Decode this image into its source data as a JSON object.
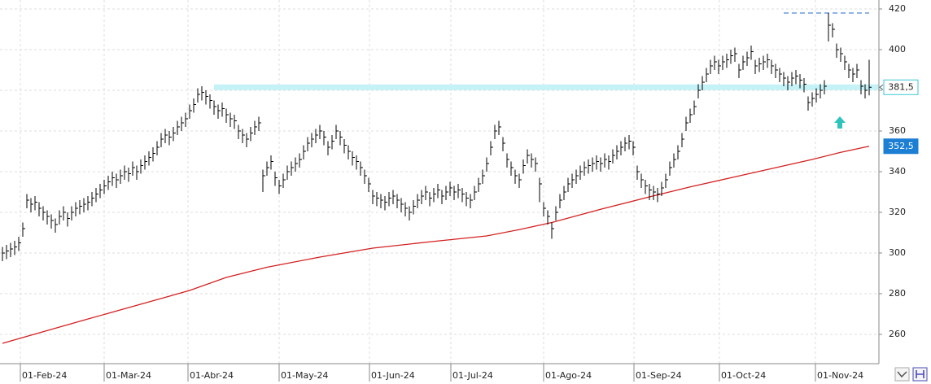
{
  "chart_data": {
    "type": "ohlc",
    "bars": {
      "color": "#000000",
      "high": [
        303,
        304,
        305,
        306,
        308,
        315,
        329,
        327,
        328,
        325,
        323,
        321,
        319,
        317,
        321,
        323,
        320,
        323,
        325,
        326,
        327,
        328,
        330,
        332,
        334,
        336,
        338,
        340,
        339,
        341,
        343,
        342,
        345,
        343,
        346,
        348,
        350,
        352,
        355,
        359,
        361,
        360,
        362,
        365,
        367,
        369,
        373,
        376,
        381,
        382,
        380,
        378,
        375,
        373,
        374,
        371,
        369,
        368,
        363,
        361,
        359,
        362,
        365,
        367,
        341,
        345,
        348,
        340,
        336,
        339,
        343,
        345,
        347,
        349,
        353,
        357,
        359,
        361,
        363,
        360,
        355,
        358,
        363,
        360,
        356,
        353,
        350,
        348,
        345,
        341,
        337,
        331,
        330,
        329,
        328,
        330,
        331,
        329,
        327,
        325,
        323,
        326,
        329,
        331,
        333,
        330,
        332,
        334,
        331,
        333,
        335,
        333,
        334,
        332,
        330,
        329,
        333,
        337,
        341,
        347,
        355,
        363,
        365,
        357,
        349,
        345,
        341,
        339,
        346,
        351,
        349,
        347,
        337,
        325,
        321,
        315,
        323,
        329,
        333,
        337,
        339,
        341,
        343,
        345,
        346,
        347,
        348,
        347,
        349,
        348,
        351,
        353,
        355,
        357,
        358,
        355,
        343,
        339,
        336,
        334,
        333,
        332,
        335,
        339,
        345,
        349,
        353,
        359,
        367,
        371,
        375,
        383,
        387,
        391,
        395,
        397,
        395,
        397,
        398,
        400,
        401,
        393,
        397,
        399,
        402,
        395,
        396,
        397,
        398,
        395,
        393,
        391,
        389,
        387,
        389,
        390,
        388,
        386,
        377,
        379,
        381,
        383,
        385,
        418,
        413,
        403,
        401,
        397,
        393,
        391,
        393,
        385,
        383,
        395
      ],
      "low": [
        296,
        297,
        298,
        299,
        301,
        308,
        322,
        320,
        321,
        318,
        316,
        314,
        312,
        310,
        314,
        316,
        313,
        316,
        318,
        319,
        320,
        321,
        323,
        325,
        327,
        329,
        331,
        333,
        332,
        334,
        336,
        335,
        338,
        336,
        339,
        341,
        343,
        345,
        348,
        352,
        354,
        353,
        355,
        358,
        360,
        362,
        366,
        369,
        374,
        375,
        373,
        371,
        368,
        366,
        367,
        364,
        362,
        361,
        356,
        354,
        352,
        355,
        358,
        360,
        330,
        338,
        341,
        333,
        329,
        332,
        336,
        338,
        340,
        342,
        346,
        350,
        352,
        354,
        356,
        353,
        348,
        351,
        356,
        353,
        349,
        346,
        343,
        341,
        338,
        334,
        330,
        324,
        323,
        322,
        321,
        323,
        324,
        322,
        320,
        318,
        316,
        319,
        322,
        324,
        326,
        323,
        325,
        327,
        324,
        326,
        328,
        326,
        327,
        325,
        323,
        322,
        326,
        330,
        334,
        340,
        348,
        356,
        358,
        350,
        342,
        338,
        334,
        332,
        339,
        344,
        342,
        340,
        325,
        318,
        314,
        307,
        316,
        322,
        326,
        330,
        332,
        334,
        336,
        338,
        339,
        340,
        341,
        340,
        342,
        341,
        344,
        346,
        348,
        350,
        351,
        348,
        336,
        332,
        329,
        326,
        326,
        325,
        328,
        332,
        338,
        342,
        346,
        352,
        360,
        364,
        368,
        376,
        380,
        384,
        388,
        390,
        388,
        390,
        391,
        393,
        394,
        386,
        390,
        392,
        395,
        388,
        389,
        390,
        391,
        388,
        386,
        384,
        382,
        380,
        382,
        383,
        381,
        379,
        370,
        372,
        374,
        376,
        378,
        404,
        406,
        396,
        394,
        390,
        386,
        384,
        386,
        378,
        376,
        377.5
      ],
      "close": [
        300,
        301,
        302,
        303,
        305,
        312,
        326,
        324,
        325,
        322,
        320,
        318,
        316,
        314,
        318,
        320,
        317,
        320,
        322,
        323,
        324,
        325,
        327,
        329,
        331,
        333,
        335,
        337,
        336,
        338,
        340,
        339,
        342,
        340,
        343,
        345,
        347,
        349,
        352,
        356,
        358,
        357,
        359,
        362,
        364,
        366,
        370,
        373,
        378,
        379,
        377,
        375,
        372,
        370,
        371,
        368,
        366,
        365,
        360,
        358,
        356,
        359,
        362,
        364,
        338,
        342,
        345,
        337,
        333,
        336,
        340,
        342,
        344,
        346,
        350,
        354,
        356,
        358,
        360,
        357,
        352,
        355,
        360,
        357,
        353,
        350,
        347,
        345,
        342,
        338,
        334,
        328,
        327,
        326,
        325,
        327,
        328,
        326,
        324,
        322,
        320,
        323,
        326,
        328,
        330,
        327,
        329,
        331,
        328,
        330,
        332,
        330,
        331,
        329,
        327,
        326,
        330,
        334,
        338,
        344,
        352,
        360,
        362,
        354,
        346,
        342,
        338,
        336,
        343,
        348,
        346,
        344,
        334,
        322,
        318,
        312,
        320,
        326,
        330,
        334,
        336,
        338,
        340,
        342,
        343,
        344,
        345,
        344,
        346,
        345,
        348,
        350,
        352,
        354,
        355,
        352,
        340,
        336,
        333,
        331,
        330,
        329,
        332,
        336,
        342,
        346,
        350,
        356,
        364,
        368,
        372,
        380,
        384,
        388,
        392,
        394,
        392,
        394,
        395,
        397,
        398,
        390,
        394,
        396,
        399,
        392,
        393,
        394,
        395,
        392,
        390,
        388,
        386,
        384,
        386,
        387,
        385,
        383,
        374,
        376,
        378,
        380,
        382,
        412,
        410,
        400,
        398,
        394,
        390,
        388,
        390,
        382,
        380,
        381.5
      ]
    },
    "moving_average": {
      "color": "#d42020",
      "x": [
        0,
        10,
        20,
        30,
        40,
        46,
        55,
        65,
        78,
        91,
        105,
        119,
        127,
        135,
        147,
        159,
        169,
        179,
        189,
        199,
        206,
        213
      ],
      "values": [
        255.6,
        261.3,
        267,
        272.6,
        278.2,
        281.6,
        288,
        293,
        298,
        302.4,
        305.5,
        308.4,
        311.5,
        315,
        321.5,
        327.6,
        332.5,
        337,
        341.5,
        346,
        349.5,
        352.5
      ]
    },
    "levels": [
      {
        "value": 381.5,
        "start": 52,
        "end": 215.4,
        "color": "#c4f2f7",
        "style": "band"
      },
      {
        "value": 418,
        "start": 192,
        "end": 213,
        "color": "#8fb4e8",
        "style": "dashed"
      }
    ],
    "price_labels": [
      {
        "value": 381.5,
        "label": "381,5",
        "color": "#3cc6d6",
        "style": "outline"
      },
      {
        "value": 352.5,
        "label": "352,5",
        "color": "#1c7fd4",
        "style": "filled"
      }
    ],
    "xlim": [
      -0.6,
      215.4
    ],
    "xticks": [
      {
        "value": 4.4,
        "label": "01-Feb-24"
      },
      {
        "value": 25,
        "label": "01-Mar-24"
      },
      {
        "value": 45.6,
        "label": "01-Abr-24"
      },
      {
        "value": 68,
        "label": "01-May-24"
      },
      {
        "value": 90.2,
        "label": "01-Jun-24"
      },
      {
        "value": 110.2,
        "label": "01-Jul-24"
      },
      {
        "value": 133,
        "label": "01-Ago-24"
      },
      {
        "value": 155.2,
        "label": "01-Sep-24"
      },
      {
        "value": 176.2,
        "label": "01-Oct-24"
      },
      {
        "value": 199.8,
        "label": "01-Nov-24"
      }
    ],
    "ylim": [
      245.6,
      424.4
    ],
    "yticks": [
      260,
      280,
      300,
      320,
      340,
      360,
      380,
      400,
      420
    ],
    "grid": true
  }
}
